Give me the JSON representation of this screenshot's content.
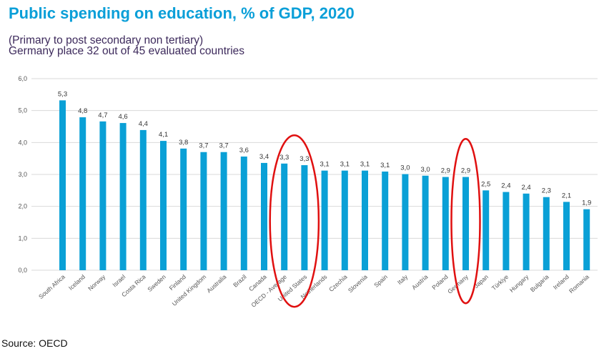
{
  "header": {
    "title": "Public spending on education, % of GDP, 2020",
    "subtitle_line1": "(Primary to post secondary non tertiary)",
    "subtitle_line2": "Germany place 32 out of 45 evaluated countries"
  },
  "footer": {
    "source": "Source: OECD"
  },
  "colors": {
    "bar": "#0aa0d6",
    "title": "#0a9fd8",
    "highlight": "#e01010",
    "grid": "#d9d9d9"
  },
  "chart_data": {
    "type": "bar",
    "title": "Public spending on education, % of GDP, 2020",
    "xlabel": "",
    "ylabel": "",
    "ylim": [
      0,
      6
    ],
    "yticks": [
      "0,0",
      "1,0",
      "2,0",
      "3,0",
      "4,0",
      "5,0",
      "6,0"
    ],
    "grid": true,
    "categories": [
      "South Africa",
      "Iceland",
      "Norway",
      "Israel",
      "Costa Rica",
      "Sweden",
      "Finland",
      "United Kingdom",
      "Australia",
      "Brazil",
      "Canada",
      "OECD - Average",
      "United States",
      "Netherlands",
      "Czechia",
      "Slovenia",
      "Spain",
      "Italy",
      "Austria",
      "Poland",
      "Germany",
      "Japan",
      "Türkiye",
      "Hungary",
      "Bulgaria",
      "Ireland",
      "Romania"
    ],
    "values": [
      5.32,
      4.79,
      4.66,
      4.61,
      4.39,
      4.05,
      3.81,
      3.7,
      3.7,
      3.56,
      3.36,
      3.34,
      3.29,
      3.12,
      3.12,
      3.12,
      3.09,
      3.01,
      2.96,
      2.92,
      2.92,
      2.5,
      2.45,
      2.4,
      2.29,
      2.14,
      1.91
    ],
    "data_labels": [
      "5,3",
      "4,8",
      "4,7",
      "4,6",
      "4,4",
      "4,1",
      "3,8",
      "3,7",
      "3,7",
      "3,6",
      "3,4",
      "3,3",
      "3,3",
      "3,1",
      "3,1",
      "3,1",
      "3,1",
      "3,0",
      "3,0",
      "2,9",
      "2,9",
      "2,5",
      "2,4",
      "2,4",
      "2,3",
      "2,1",
      "1,9"
    ],
    "annotations": [
      {
        "type": "ellipse",
        "around": [
          "OECD - Average",
          "United States"
        ]
      },
      {
        "type": "ellipse",
        "around": [
          "Germany"
        ]
      }
    ]
  }
}
